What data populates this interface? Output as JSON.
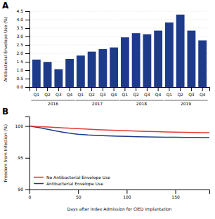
{
  "chart_data": [
    {
      "type": "bar",
      "title": "A",
      "categories": [
        "Q1",
        "Q2",
        "Q3",
        "Q4",
        "Q1",
        "Q2",
        "Q3",
        "Q4",
        "Q1",
        "Q2",
        "Q3",
        "Q4",
        "Q1",
        "Q2",
        "Q3",
        "Q4"
      ],
      "values": [
        1.63,
        1.49,
        1.06,
        1.67,
        1.87,
        2.1,
        2.25,
        2.35,
        2.95,
        3.2,
        3.13,
        3.35,
        3.83,
        4.3,
        3.35,
        2.77
      ],
      "color": "#1e3a8a",
      "annotations": [
        "2016",
        "2017",
        "2018",
        "2019"
      ],
      "y_label": "Antibacterial Envelope Use (%)",
      "ylim": [
        0.0,
        4.5
      ],
      "yticks": [
        {
          "value": 0.0,
          "label": "0.0"
        },
        0.5,
        {
          "value": 1.0,
          "label": "1.0"
        },
        1.5,
        {
          "value": 2.0,
          "label": "2.0"
        },
        2.5,
        {
          "value": 3.0,
          "label": "3.0"
        },
        3.5,
        {
          "value": 4.0,
          "label": "4.0"
        },
        4.5
      ],
      "grid": true
    },
    {
      "type": "line",
      "title": "B",
      "x_label": "Days after Index Admission for CIED Implantation",
      "y_label": "Freedom from Infection (%)",
      "x": [
        0,
        5,
        10,
        15,
        20,
        25,
        30,
        35,
        40,
        45,
        50,
        60,
        70,
        80,
        90,
        100,
        110,
        120,
        130,
        140,
        150,
        160,
        170,
        180,
        185
      ],
      "series": [
        {
          "name": "No Antibacterial Envelope Use",
          "color": "#e53935",
          "values": [
            100,
            99.95,
            99.9,
            99.87,
            99.83,
            99.79,
            99.75,
            99.71,
            99.67,
            99.63,
            99.58,
            99.5,
            99.43,
            99.37,
            99.31,
            99.25,
            99.2,
            99.15,
            99.11,
            99.07,
            99.04,
            99.01,
            98.99,
            98.97,
            98.96
          ]
        },
        {
          "name": "Antibacterial Envelope Use",
          "color": "#1e3a8a",
          "values": [
            100,
            99.88,
            99.75,
            99.6,
            99.45,
            99.3,
            99.15,
            99.02,
            98.9,
            98.8,
            98.72,
            98.6,
            98.52,
            98.46,
            98.41,
            98.37,
            98.33,
            98.3,
            98.27,
            98.25,
            98.23,
            98.22,
            98.2,
            98.19,
            98.18
          ]
        }
      ],
      "xlim": [
        0,
        185
      ],
      "xticks": [
        0,
        50,
        100,
        150
      ],
      "ylim": [
        90,
        101.5
      ],
      "yticks": [
        90,
        95,
        100
      ],
      "legend": "lower left",
      "grid": false
    }
  ]
}
